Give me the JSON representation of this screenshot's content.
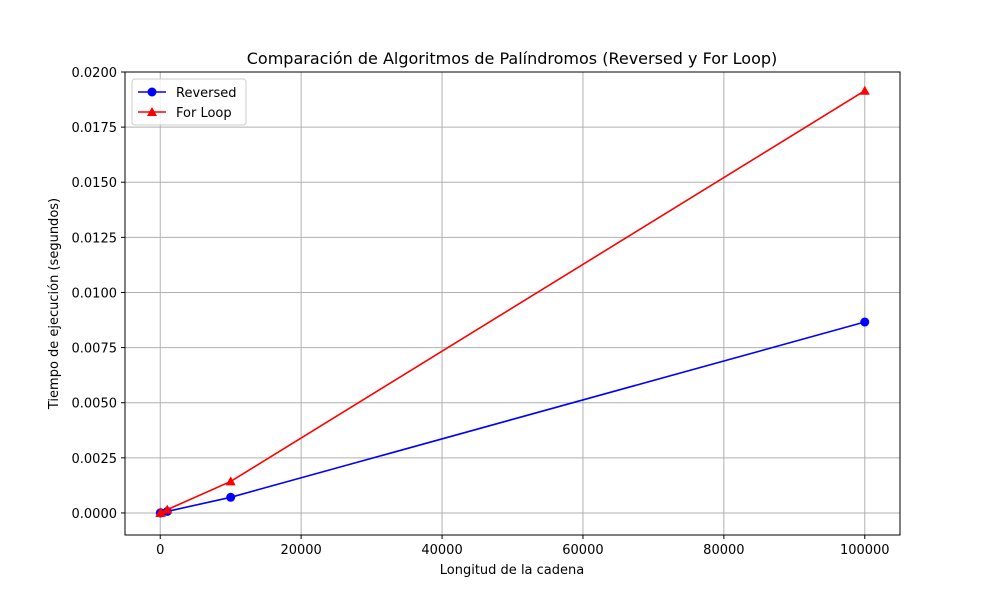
{
  "chart_data": {
    "type": "line",
    "title": "Comparación de Algoritmos de Palíndromos (Reversed y For Loop)",
    "xlabel": "Longitud de la cadena",
    "ylabel": "Tiempo de ejecución (segundos)",
    "xlim": [
      -5000,
      105000
    ],
    "ylim": [
      -0.001,
      0.02
    ],
    "xticks": [
      0,
      20000,
      40000,
      60000,
      80000,
      100000
    ],
    "xtick_labels": [
      "0",
      "20000",
      "40000",
      "60000",
      "80000",
      "100000"
    ],
    "yticks": [
      0.0,
      0.0025,
      0.005,
      0.0075,
      0.01,
      0.0125,
      0.015,
      0.0175,
      0.02
    ],
    "ytick_labels": [
      "0.0000",
      "0.0025",
      "0.0050",
      "0.0075",
      "0.0100",
      "0.0125",
      "0.0150",
      "0.0175",
      "0.0200"
    ],
    "grid": true,
    "legend_position": "top-left",
    "x": [
      10,
      100,
      1000,
      10000,
      100000
    ],
    "series": [
      {
        "name": "Reversed",
        "color": "#0000ff",
        "marker": "circle",
        "values": [
          1e-06,
          6e-06,
          7e-05,
          0.00071,
          0.00866
        ]
      },
      {
        "name": "For Loop",
        "color": "#ff0000",
        "marker": "triangle",
        "values": [
          2e-06,
          1.5e-05,
          0.00015,
          0.00143,
          0.01915
        ]
      }
    ]
  }
}
